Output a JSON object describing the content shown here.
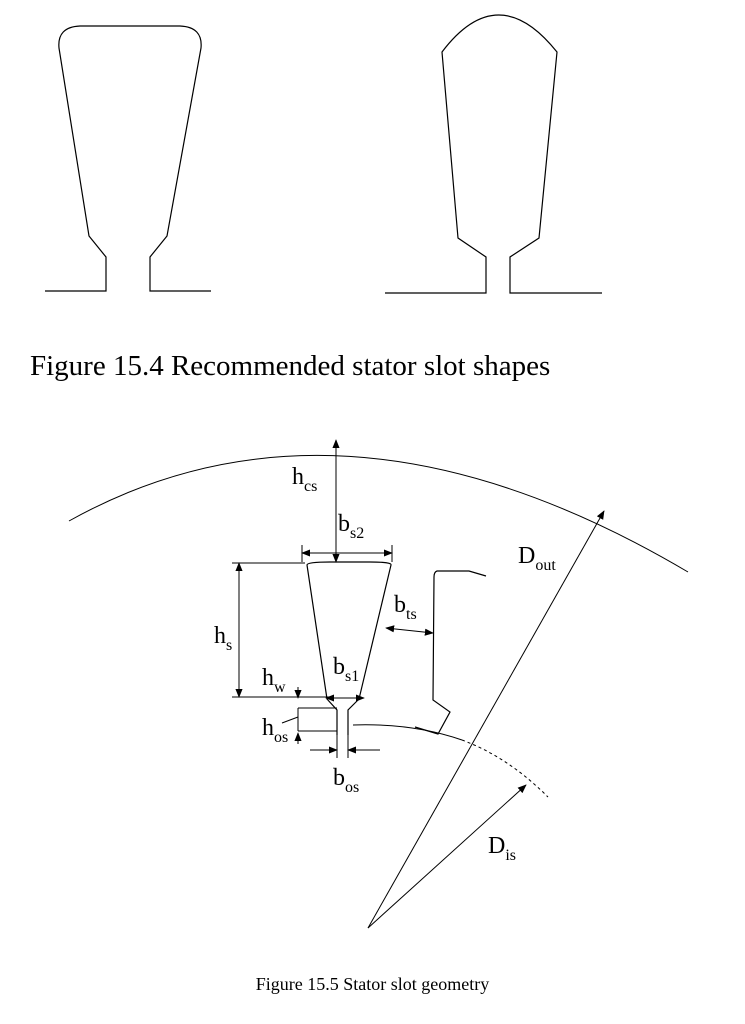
{
  "figure_15_4": {
    "caption": "Figure 15.4 Recommended stator slot shapes"
  },
  "figure_15_5": {
    "caption": "Figure 15.5 Stator slot geometry",
    "labels": {
      "h_cs": {
        "main": "h",
        "sub": "cs"
      },
      "b_s2": {
        "main": "b",
        "sub": "s2"
      },
      "D_out": {
        "main": "D",
        "sub": "out"
      },
      "b_ts": {
        "main": "b",
        "sub": "ts"
      },
      "h_s": {
        "main": "h",
        "sub": "s"
      },
      "h_w": {
        "main": "h",
        "sub": "w"
      },
      "b_s1": {
        "main": "b",
        "sub": "s1"
      },
      "h_os": {
        "main": "h",
        "sub": "os"
      },
      "b_os": {
        "main": "b",
        "sub": "os"
      },
      "D_is": {
        "main": "D",
        "sub": "is"
      }
    }
  }
}
